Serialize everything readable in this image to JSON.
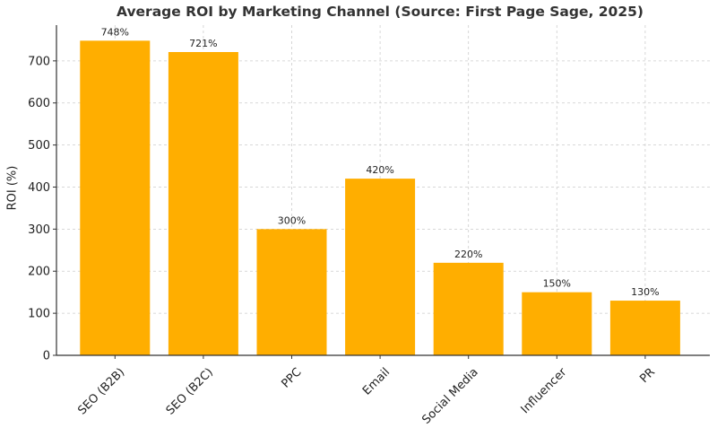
{
  "chart_data": {
    "type": "bar",
    "title": "Average ROI by Marketing Channel (Source: First Page Sage, 2025)",
    "xlabel": "",
    "ylabel": "ROI (%)",
    "categories": [
      "SEO (B2B)",
      "SEO (B2C)",
      "PPC",
      "Email",
      "Social Media",
      "Influencer",
      "PR"
    ],
    "values": [
      748,
      721,
      300,
      420,
      220,
      150,
      130
    ],
    "data_labels": [
      "748%",
      "721%",
      "300%",
      "420%",
      "220%",
      "150%",
      "130%"
    ],
    "yticks": [
      0,
      100,
      200,
      300,
      400,
      500,
      600,
      700
    ],
    "ylim": [
      0,
      785
    ],
    "grid": true,
    "bar_color": "#FFAE00"
  }
}
